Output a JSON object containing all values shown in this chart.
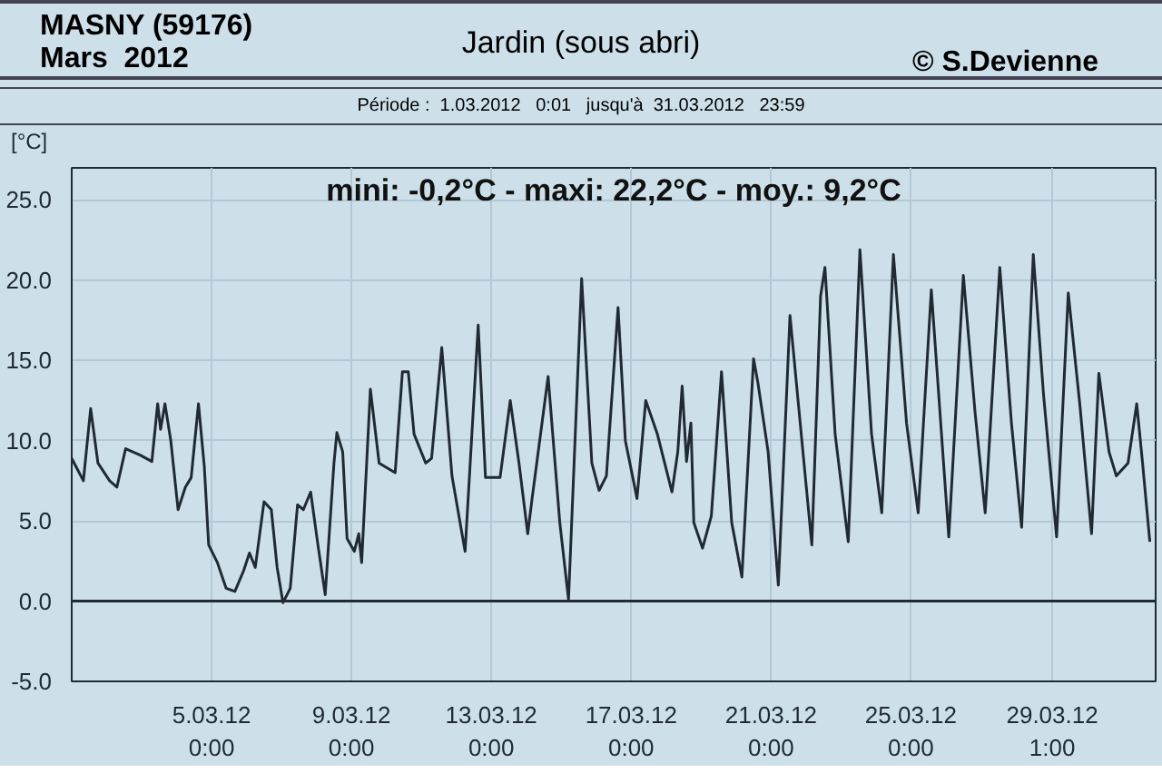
{
  "chart_data": {
    "type": "line",
    "title": "Jardin (sous abri)",
    "ylabel": "[°C]",
    "annotations": [
      "MASNY (59176)",
      "Mars  2012",
      "© S.Devienne",
      "Période :  1.03.2012   0:01   jusqu'à  31.03.2012   23:59",
      "mini: -0,2°C - maxi: 22,2°C - moy.: 9,2°C"
    ],
    "x": [
      "2012-03-01T00:00",
      "2012-03-01T08:00",
      "2012-03-01T13:00",
      "2012-03-01T18:00",
      "2012-03-02T02:00",
      "2012-03-02T07:00",
      "2012-03-02T13:00",
      "2012-03-02T23:00",
      "2012-03-03T07:00",
      "2012-03-03T11:00",
      "2012-03-03T13:00",
      "2012-03-03T16:00",
      "2012-03-03T20:00",
      "2012-03-04T01:00",
      "2012-03-04T06:00",
      "2012-03-04T10:00",
      "2012-03-04T15:00",
      "2012-03-04T19:00",
      "2012-03-04T22:00",
      "2012-03-05T04:00",
      "2012-03-05T10:00",
      "2012-03-05T16:00",
      "2012-03-05T22:00",
      "2012-03-06T02:00",
      "2012-03-06T06:00",
      "2012-03-06T12:00",
      "2012-03-06T17:00",
      "2012-03-06T21:00",
      "2012-03-07T01:00",
      "2012-03-07T06:00",
      "2012-03-07T11:00",
      "2012-03-07T15:00",
      "2012-03-07T20:00",
      "2012-03-08T01:00",
      "2012-03-08T06:00",
      "2012-03-08T12:00",
      "2012-03-08T14:00",
      "2012-03-08T18:00",
      "2012-03-08T21:00",
      "2012-03-09T02:00",
      "2012-03-09T05:00",
      "2012-03-09T07:00",
      "2012-03-09T13:00",
      "2012-03-09T19:00",
      "2012-03-10T06:00",
      "2012-03-10T11:00",
      "2012-03-10T15:00",
      "2012-03-10T19:00",
      "2012-03-11T03:00",
      "2012-03-11T07:00",
      "2012-03-11T14:00",
      "2012-03-11T21:00",
      "2012-03-12T06:00",
      "2012-03-12T15:00",
      "2012-03-12T20:00",
      "2012-03-13T06:00",
      "2012-03-13T13:00",
      "2012-03-13T19:00",
      "2012-03-14T01:00",
      "2012-03-14T04:00",
      "2012-03-14T15:00",
      "2012-03-14T23:00",
      "2012-03-15T05:00",
      "2012-03-15T14:00",
      "2012-03-15T21:00",
      "2012-03-16T02:00",
      "2012-03-16T07:00",
      "2012-03-16T15:00",
      "2012-03-16T20:00",
      "2012-03-17T04:00",
      "2012-03-17T10:00",
      "2012-03-17T18:00",
      "2012-03-18T04:00",
      "2012-03-18T08:00",
      "2012-03-18T11:00",
      "2012-03-18T14:00",
      "2012-03-18T17:00",
      "2012-03-18T19:00",
      "2012-03-19T01:00",
      "2012-03-19T07:00",
      "2012-03-19T14:00",
      "2012-03-19T21:00",
      "2012-03-20T04:00",
      "2012-03-20T12:00",
      "2012-03-20T15:00",
      "2012-03-20T22:00",
      "2012-03-21T05:00",
      "2012-03-21T13:00",
      "2012-03-21T20:00",
      "2012-03-22T04:00",
      "2012-03-22T10:00",
      "2012-03-22T13:00",
      "2012-03-22T20:00",
      "2012-03-23T05:00",
      "2012-03-23T13:00",
      "2012-03-23T21:00",
      "2012-03-24T04:00",
      "2012-03-24T12:00",
      "2012-03-24T21:00",
      "2012-03-25T05:00",
      "2012-03-25T14:00",
      "2012-03-26T02:00",
      "2012-03-26T12:00",
      "2012-03-26T20:00",
      "2012-03-27T03:00",
      "2012-03-27T13:00",
      "2012-03-27T21:00",
      "2012-03-28T04:00",
      "2012-03-28T12:00",
      "2012-03-28T19:00",
      "2012-03-29T04:00",
      "2012-03-29T12:00",
      "2012-03-29T20:00",
      "2012-03-30T04:00",
      "2012-03-30T09:00",
      "2012-03-30T16:00",
      "2012-03-30T21:00",
      "2012-03-31T05:00",
      "2012-03-31T11:00",
      "2012-03-31T15:00",
      "2012-03-31T20:00"
    ],
    "series": [
      {
        "color": "#1f2a33",
        "values": [
          8.9,
          7.5,
          12.0,
          8.6,
          7.5,
          7.1,
          9.5,
          9.1,
          8.7,
          12.3,
          10.7,
          12.3,
          10.0,
          5.7,
          7.1,
          7.7,
          12.3,
          8.4,
          3.5,
          2.4,
          0.8,
          0.6,
          1.9,
          3.0,
          2.1,
          6.2,
          5.7,
          2.1,
          -0.1,
          0.8,
          6.0,
          5.7,
          6.8,
          3.5,
          0.4,
          8.6,
          10.5,
          9.3,
          3.9,
          3.1,
          4.2,
          2.4,
          13.2,
          8.6,
          8.0,
          14.3,
          14.3,
          10.4,
          8.6,
          8.9,
          15.8,
          7.8,
          3.1,
          17.2,
          7.7,
          7.7,
          12.5,
          8.6,
          4.2,
          6.4,
          14.0,
          4.9,
          0.1,
          20.1,
          8.6,
          6.9,
          7.8,
          18.3,
          10.0,
          6.4,
          12.5,
          10.4,
          6.8,
          9.3,
          13.4,
          8.7,
          11.1,
          4.9,
          3.3,
          5.3,
          14.3,
          4.9,
          1.5,
          15.1,
          13.6,
          9.3,
          1.0,
          17.8,
          11.1,
          3.5,
          19.0,
          20.8,
          10.4,
          3.7,
          21.9,
          10.4,
          5.5,
          21.6,
          11.1,
          5.5,
          19.4,
          4.0,
          20.3,
          11.8,
          5.5,
          20.8,
          11.1,
          4.6,
          21.6,
          12.9,
          4.0,
          19.2,
          12.2,
          4.2,
          14.2,
          9.3,
          7.8,
          8.6,
          12.3,
          8.6,
          3.7
        ]
      }
    ],
    "xlim": [
      "2012-03-01T00:00",
      "2012-03-31T23:59"
    ],
    "xticks": [
      {
        "value": "2012-03-05T00:00",
        "label": "5.03.12\n0:00"
      },
      {
        "value": "2012-03-09T00:00",
        "label": "9.03.12\n0:00"
      },
      {
        "value": "2012-03-13T00:00",
        "label": "13.03.12\n0:00"
      },
      {
        "value": "2012-03-17T00:00",
        "label": "17.03.12\n0:00"
      },
      {
        "value": "2012-03-21T00:00",
        "label": "21.03.12\n0:00"
      },
      {
        "value": "2012-03-25T00:00",
        "label": "25.03.12\n0:00"
      },
      {
        "value": "2012-03-29T01:00",
        "label": "29.03.12\n1:00"
      }
    ],
    "ylim": [
      -5,
      27
    ],
    "yticks": [
      {
        "value": -5,
        "label": "-5.0"
      },
      {
        "value": 0,
        "label": "0.0"
      },
      {
        "value": 5,
        "label": "5.0"
      },
      {
        "value": 10,
        "label": "10.0"
      },
      {
        "value": 15,
        "label": "15.0"
      },
      {
        "value": 20,
        "label": "20.0"
      },
      {
        "value": 25,
        "label": "25.0"
      }
    ],
    "ref_lines": [
      {
        "axis": "y",
        "value": 0,
        "color": "#1f2a33"
      }
    ],
    "grid": true,
    "marker": "none",
    "line_style": "solid"
  }
}
